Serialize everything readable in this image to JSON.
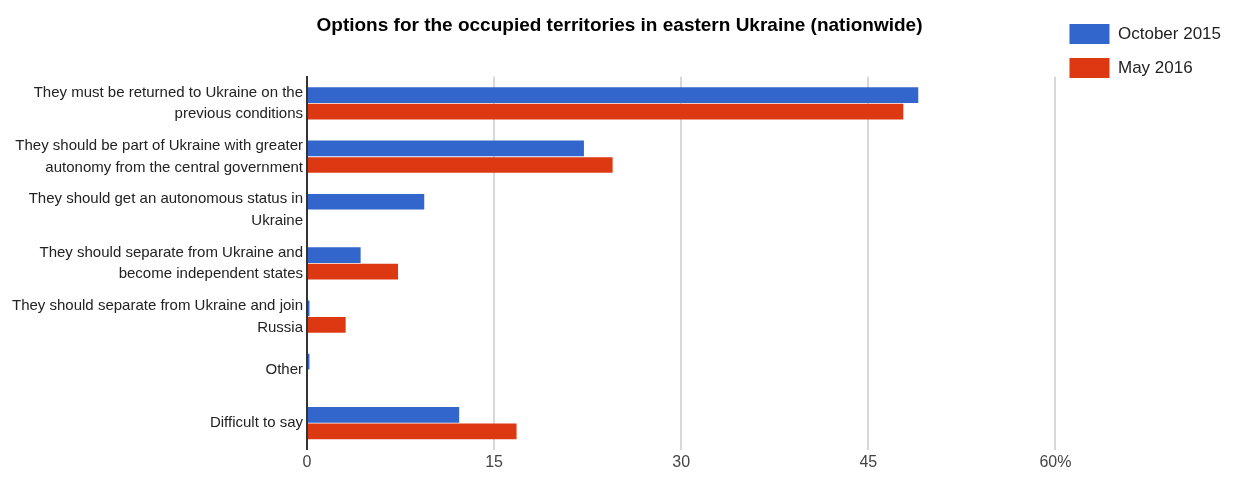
{
  "chart_data": {
    "type": "bar",
    "orientation": "horizontal",
    "title": "Options for the occupied territories in eastern Ukraine (nationwide)",
    "categories": [
      "They must be returned to Ukraine on the previous conditions",
      "They should be part of Ukraine with greater autonomy from the central government",
      "They should get an autonomous status in Ukraine",
      "They should separate from Ukraine and become independent states",
      "They should separate from Ukraine and join Russia",
      "Other",
      "Difficult to say"
    ],
    "series": [
      {
        "name": "October 2015",
        "color": "#3366cc",
        "values": [
          49.0,
          22.2,
          9.4,
          4.3,
          0.2,
          0.2,
          12.2
        ]
      },
      {
        "name": "May 2016",
        "color": "#dc3912",
        "values": [
          47.8,
          24.5,
          null,
          7.3,
          3.1,
          null,
          16.8
        ]
      }
    ],
    "xlim": [
      0,
      60
    ],
    "xticks": [
      0,
      15,
      30,
      45,
      {
        "value": 60,
        "label": "60%"
      }
    ],
    "grid": "x",
    "legend": "top right"
  }
}
